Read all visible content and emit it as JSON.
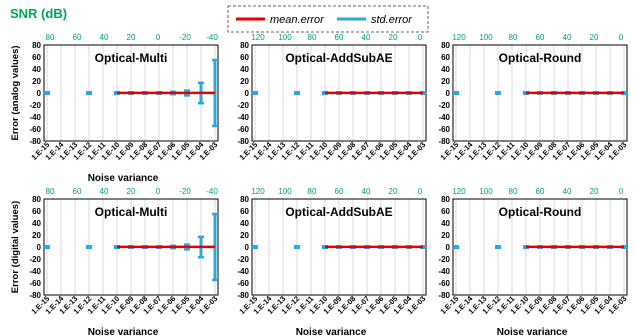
{
  "colors": {
    "mean": "#e60000",
    "std": "#29a9e0",
    "snr": "#00a651",
    "axis": "#000000",
    "grid": "#d9d9d9"
  },
  "legend": {
    "snr_label": "SNR (dB)",
    "mean_label": "mean.error",
    "std_label": "std.error"
  },
  "chart_data": [
    {
      "type": "line",
      "title": "Optical-Multi",
      "ylabel": "Error (analog values)",
      "xlabel": "Noise variance",
      "categories": [
        "1.E-15",
        "1.E-14",
        "1.E-13",
        "1.E-12",
        "1.E-11",
        "1.E-10",
        "1.E-09",
        "1.E-08",
        "1.E-07",
        "1.E-06",
        "1.E-05",
        "1.E-04",
        "1.E-03"
      ],
      "snr_ticks": [
        "80",
        "60",
        "40",
        "20",
        "0",
        "-20",
        "-40"
      ],
      "ylim": [
        -80,
        80
      ],
      "yticks": [
        "80",
        "60",
        "40",
        "20",
        "0",
        "-20",
        "-40",
        "-60",
        "-80"
      ],
      "series": [
        {
          "name": "mean.error",
          "values": [
            null,
            null,
            null,
            null,
            null,
            0.3,
            0.3,
            0.3,
            0.3,
            0.3,
            0.3,
            0.3,
            0.3
          ]
        },
        {
          "name": "std.error",
          "values": [
            0.3,
            null,
            null,
            0.3,
            null,
            0.3,
            0.5,
            0.5,
            1,
            2,
            4,
            17,
            55
          ]
        }
      ]
    },
    {
      "type": "line",
      "title": "Optical-AddSubAE",
      "ylabel": "",
      "xlabel": "",
      "categories": [
        "1.E-15",
        "1.E-14",
        "1.E-13",
        "1.E-12",
        "1.E-11",
        "1.E-10",
        "1.E-09",
        "1.E-08",
        "1.E-07",
        "1.E-06",
        "1.E-05",
        "1.E-04",
        "1.E-03"
      ],
      "snr_ticks": [
        "120",
        "100",
        "80",
        "60",
        "40",
        "20",
        "0"
      ],
      "ylim": [
        -80,
        80
      ],
      "yticks": [
        "80",
        "60",
        "40",
        "20",
        "0",
        "-20",
        "-40",
        "-60",
        "-80"
      ],
      "series": [
        {
          "name": "mean.error",
          "values": [
            null,
            null,
            null,
            null,
            null,
            0.2,
            0.2,
            0.2,
            0.2,
            0.2,
            0.2,
            0.2,
            0.2
          ]
        },
        {
          "name": "std.error",
          "values": [
            0.3,
            null,
            null,
            0.3,
            null,
            0.3,
            0.3,
            0.3,
            0.3,
            0.3,
            0.3,
            0.5,
            1
          ]
        }
      ]
    },
    {
      "type": "line",
      "title": "Optical-Round",
      "ylabel": "",
      "xlabel": "",
      "categories": [
        "1.E-15",
        "1.E-14",
        "1.E-13",
        "1.E-12",
        "1.E-11",
        "1.E-10",
        "1.E-09",
        "1.E-08",
        "1.E-07",
        "1.E-06",
        "1.E-05",
        "1.E-04",
        "1.E-03"
      ],
      "snr_ticks": [
        "120",
        "100",
        "80",
        "60",
        "40",
        "20",
        "0"
      ],
      "ylim": [
        -80,
        80
      ],
      "yticks": [
        "80",
        "60",
        "40",
        "20",
        "0",
        "-20",
        "-40",
        "-60",
        "-80"
      ],
      "series": [
        {
          "name": "mean.error",
          "values": [
            null,
            null,
            null,
            null,
            null,
            0.2,
            0.2,
            0.2,
            0.2,
            0.2,
            0.2,
            0.2,
            0.2
          ]
        },
        {
          "name": "std.error",
          "values": [
            0.3,
            null,
            null,
            0.3,
            null,
            0.3,
            0.3,
            0.3,
            0.3,
            0.3,
            0.3,
            0.5,
            1
          ]
        }
      ]
    },
    {
      "type": "line",
      "title": "Optical-Multi",
      "ylabel": "Error (digital values)",
      "xlabel": "Noise variance",
      "categories": [
        "1.E-15",
        "1.E-14",
        "1.E-13",
        "1.E-12",
        "1.E-11",
        "1.E-10",
        "1.E-09",
        "1.E-08",
        "1.E-07",
        "1.E-06",
        "1.E-05",
        "1.E-04",
        "1.E-03"
      ],
      "snr_ticks": [
        "80",
        "60",
        "40",
        "20",
        "0",
        "-20",
        "-40"
      ],
      "ylim": [
        -80,
        80
      ],
      "yticks": [
        "80",
        "60",
        "40",
        "20",
        "0",
        "-20",
        "-40",
        "-60",
        "-80"
      ],
      "series": [
        {
          "name": "mean.error",
          "values": [
            null,
            null,
            null,
            null,
            null,
            0.3,
            0.3,
            0.3,
            0.3,
            0.3,
            0.3,
            0.3,
            0.3
          ]
        },
        {
          "name": "std.error",
          "values": [
            0.3,
            null,
            null,
            0.3,
            null,
            0.3,
            0.5,
            0.5,
            1,
            2,
            4,
            17,
            55
          ]
        }
      ]
    },
    {
      "type": "line",
      "title": "Optical-AddSubAE",
      "ylabel": "",
      "xlabel": "Noise variance",
      "categories": [
        "1.E-15",
        "1.E-14",
        "1.E-13",
        "1.E-12",
        "1.E-11",
        "1.E-10",
        "1.E-09",
        "1.E-08",
        "1.E-07",
        "1.E-06",
        "1.E-05",
        "1.E-04",
        "1.E-03"
      ],
      "snr_ticks": [
        "120",
        "100",
        "80",
        "60",
        "40",
        "20",
        "0"
      ],
      "ylim": [
        -80,
        80
      ],
      "yticks": [
        "80",
        "60",
        "40",
        "20",
        "0",
        "-20",
        "-40",
        "-60",
        "-80"
      ],
      "series": [
        {
          "name": "mean.error",
          "values": [
            null,
            null,
            null,
            null,
            null,
            0.2,
            0.2,
            0.2,
            0.2,
            0.2,
            0.2,
            0.2,
            0.2
          ]
        },
        {
          "name": "std.error",
          "values": [
            0.3,
            null,
            null,
            0.3,
            null,
            0.3,
            0.3,
            0.3,
            0.3,
            0.3,
            0.3,
            0.5,
            1
          ]
        }
      ]
    },
    {
      "type": "line",
      "title": "Optical-Round",
      "ylabel": "",
      "xlabel": "Noise variance",
      "categories": [
        "1.E-15",
        "1.E-14",
        "1.E-13",
        "1.E-12",
        "1.E-11",
        "1.E-10",
        "1.E-09",
        "1.E-08",
        "1.E-07",
        "1.E-06",
        "1.E-05",
        "1.E-04",
        "1.E-03"
      ],
      "snr_ticks": [
        "120",
        "100",
        "80",
        "60",
        "40",
        "20",
        "0"
      ],
      "ylim": [
        -80,
        80
      ],
      "yticks": [
        "80",
        "60",
        "40",
        "20",
        "0",
        "-20",
        "-40",
        "-60",
        "-80"
      ],
      "series": [
        {
          "name": "mean.error",
          "values": [
            null,
            null,
            null,
            null,
            null,
            0.2,
            0.2,
            0.2,
            0.2,
            0.2,
            0.2,
            0.2,
            0.2
          ]
        },
        {
          "name": "std.error",
          "values": [
            0.3,
            null,
            null,
            0.3,
            null,
            0.3,
            0.3,
            0.3,
            0.3,
            0.3,
            0.3,
            0.5,
            1
          ]
        }
      ]
    }
  ]
}
